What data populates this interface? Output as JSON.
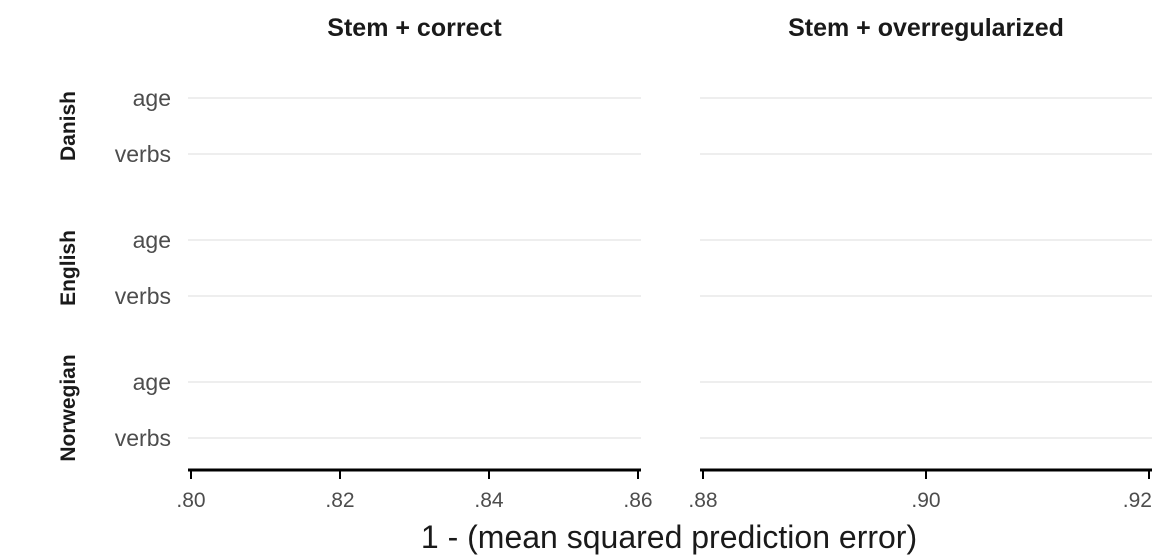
{
  "chart_data": {
    "type": "scatter",
    "xlabel": "1 - (mean squared prediction error)",
    "grid": true,
    "facet_columns": [
      {
        "title": "Stem + correct",
        "xlim": [
          0.8,
          0.86
        ],
        "ticks": [
          0.8,
          0.82,
          0.84,
          0.86
        ],
        "tick_labels": [
          ".80",
          ".82",
          ".84",
          ".86"
        ]
      },
      {
        "title": "Stem + overregularized",
        "xlim": [
          0.88,
          0.92
        ],
        "ticks": [
          0.88,
          0.9,
          0.92
        ],
        "tick_labels": [
          ".88",
          ".90",
          ".92"
        ]
      }
    ],
    "facet_rows": [
      {
        "name": "Danish",
        "categories": [
          "age",
          "verbs"
        ]
      },
      {
        "name": "English",
        "categories": [
          "age",
          "verbs"
        ]
      },
      {
        "name": "Norwegian",
        "categories": [
          "age",
          "verbs"
        ]
      }
    ],
    "points": []
  }
}
